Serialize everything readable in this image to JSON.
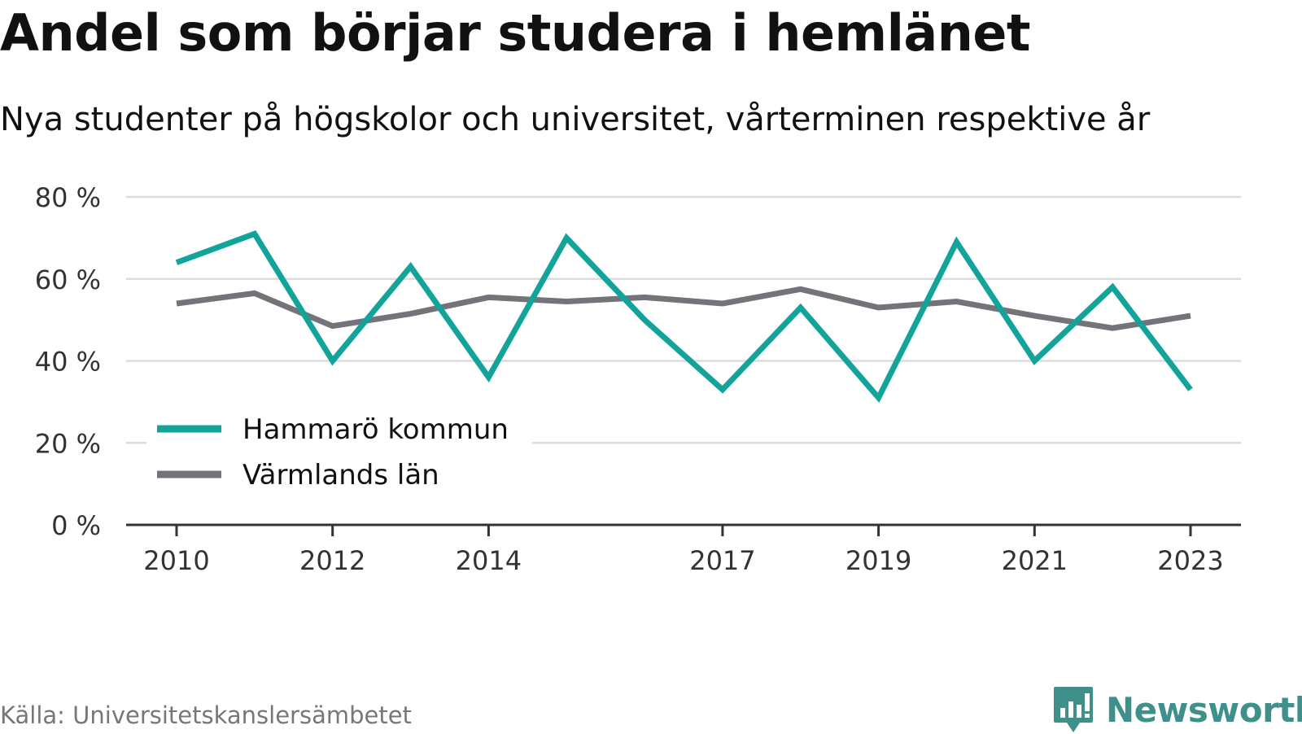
{
  "header": {
    "title": "Andel som börjar studera i hemlänet",
    "subtitle": "Nya studenter på högskolor och universitet, vårterminen respektive år"
  },
  "footer": {
    "source": "Källa: Universitetskanslersämbetet",
    "brand": "Newsworthy",
    "brand_icon": "chart-bubble-icon"
  },
  "colors": {
    "hammaro": "#12a39a",
    "varmland": "#74737a",
    "grid": "#dcdcdc",
    "axis": "#333333",
    "brand": "#3f8f8a"
  },
  "chart_data": {
    "type": "line",
    "title": "Andel som börjar studera i hemlänet",
    "subtitle": "Nya studenter på högskolor och universitet, vårterminen respektive år",
    "x": [
      2010,
      2011,
      2012,
      2013,
      2014,
      2015,
      2016,
      2017,
      2018,
      2019,
      2020,
      2021,
      2022,
      2023
    ],
    "x_ticks": [
      2010,
      2012,
      2014,
      2017,
      2019,
      2021,
      2023
    ],
    "y_ticks": [
      0,
      20,
      40,
      60,
      80
    ],
    "y_tick_suffix": " %",
    "ylim": [
      0,
      80
    ],
    "grid": true,
    "legend_position": "bottom-left",
    "series": [
      {
        "name": "Hammarö kommun",
        "color": "#12a39a",
        "values": [
          64,
          71,
          40,
          63,
          36,
          70,
          50,
          33,
          53,
          31,
          69,
          40,
          58,
          33
        ]
      },
      {
        "name": "Värmlands län",
        "color": "#74737a",
        "values": [
          54,
          56.5,
          48.5,
          51.5,
          55.5,
          54.5,
          55.5,
          54,
          57.5,
          53,
          54.5,
          51,
          48,
          51
        ]
      }
    ]
  }
}
